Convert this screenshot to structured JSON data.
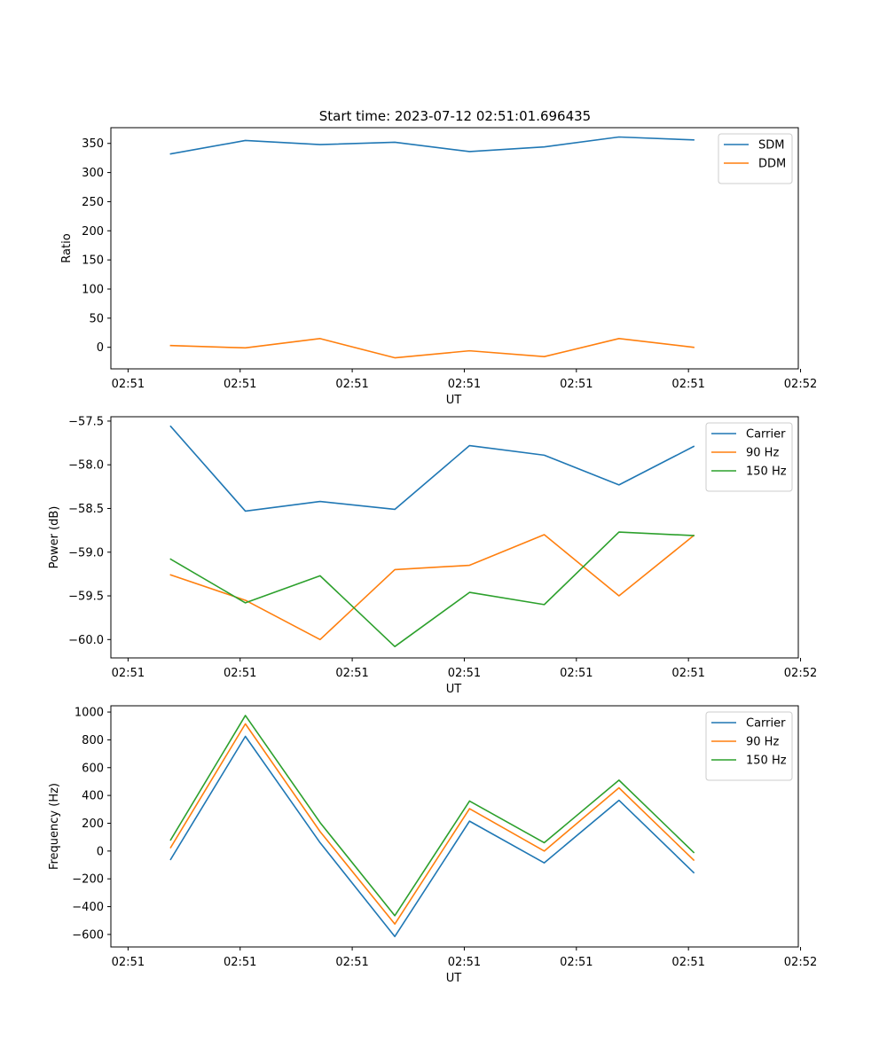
{
  "figure_title": "Start time: 2023-07-12 02:51:01.696435",
  "chart_data": [
    {
      "type": "line",
      "title": "Start time: 2023-07-12 02:51:01.696435",
      "xlabel": "UT",
      "ylabel": "Ratio",
      "x": [
        1,
        2,
        3,
        4,
        5,
        6,
        7,
        8
      ],
      "xlim": [
        0.2,
        9.4
      ],
      "xticks": [
        0.43,
        1.93,
        3.43,
        4.93,
        6.43,
        7.93,
        9.43
      ],
      "xtick_labels": [
        "02:51",
        "02:51",
        "02:51",
        "02:51",
        "02:51",
        "02:51",
        "02:52"
      ],
      "ylim": [
        -37,
        377
      ],
      "yticks": [
        0,
        50,
        100,
        150,
        200,
        250,
        300,
        350
      ],
      "ytick_labels": [
        "0",
        "50",
        "100",
        "150",
        "200",
        "250",
        "300",
        "350"
      ],
      "legend": "upper right",
      "series": [
        {
          "name": "SDM",
          "color": "#1f77b4",
          "values": [
            332,
            355,
            348,
            352,
            336,
            344,
            361,
            356
          ]
        },
        {
          "name": "DDM",
          "color": "#ff7f0e",
          "values": [
            3,
            -1,
            15,
            -18,
            -6,
            -16,
            15,
            0
          ]
        }
      ]
    },
    {
      "type": "line",
      "title": "",
      "xlabel": "UT",
      "ylabel": "Power (dB)",
      "x": [
        1,
        2,
        3,
        4,
        5,
        6,
        7,
        8
      ],
      "xlim": [
        0.2,
        9.4
      ],
      "xticks": [
        0.43,
        1.93,
        3.43,
        4.93,
        6.43,
        7.93,
        9.43
      ],
      "xtick_labels": [
        "02:51",
        "02:51",
        "02:51",
        "02:51",
        "02:51",
        "02:51",
        "02:52"
      ],
      "ylim": [
        -60.21,
        -57.45
      ],
      "yticks": [
        -60.0,
        -59.5,
        -59.0,
        -58.5,
        -58.0,
        -57.5
      ],
      "ytick_labels": [
        "−60.0",
        "−59.5",
        "−59.0",
        "−58.5",
        "−58.0",
        "−57.5"
      ],
      "legend": "upper right",
      "series": [
        {
          "name": "Carrier",
          "color": "#1f77b4",
          "values": [
            -57.56,
            -58.53,
            -58.42,
            -58.51,
            -57.78,
            -57.89,
            -58.23,
            -57.79
          ]
        },
        {
          "name": "90 Hz",
          "color": "#ff7f0e",
          "values": [
            -59.26,
            -59.55,
            -60.0,
            -59.2,
            -59.15,
            -58.8,
            -59.5,
            -58.81
          ]
        },
        {
          "name": "150 Hz",
          "color": "#2ca02c",
          "values": [
            -59.08,
            -59.58,
            -59.27,
            -60.08,
            -59.46,
            -59.6,
            -58.77,
            -58.81
          ]
        }
      ]
    },
    {
      "type": "line",
      "title": "",
      "xlabel": "UT",
      "ylabel": "Frequency (Hz)",
      "x": [
        1,
        2,
        3,
        4,
        5,
        6,
        7,
        8
      ],
      "xlim": [
        0.2,
        9.4
      ],
      "xticks": [
        0.43,
        1.93,
        3.43,
        4.93,
        6.43,
        7.93,
        9.43
      ],
      "xtick_labels": [
        "02:51",
        "02:51",
        "02:51",
        "02:51",
        "02:51",
        "02:51",
        "02:52"
      ],
      "ylim": [
        -690,
        1045
      ],
      "yticks": [
        -600,
        -400,
        -200,
        0,
        200,
        400,
        600,
        800,
        1000
      ],
      "ytick_labels": [
        "−600",
        "−400",
        "−200",
        "0",
        "200",
        "400",
        "600",
        "800",
        "1000"
      ],
      "legend": "upper right",
      "series": [
        {
          "name": "Carrier",
          "color": "#1f77b4",
          "values": [
            -60,
            825,
            60,
            -615,
            215,
            -85,
            365,
            -155
          ]
        },
        {
          "name": "90 Hz",
          "color": "#ff7f0e",
          "values": [
            25,
            915,
            140,
            -525,
            305,
            0,
            455,
            -65
          ]
        },
        {
          "name": "150 Hz",
          "color": "#2ca02c",
          "values": [
            80,
            975,
            205,
            -465,
            360,
            60,
            510,
            -10
          ]
        }
      ]
    }
  ]
}
